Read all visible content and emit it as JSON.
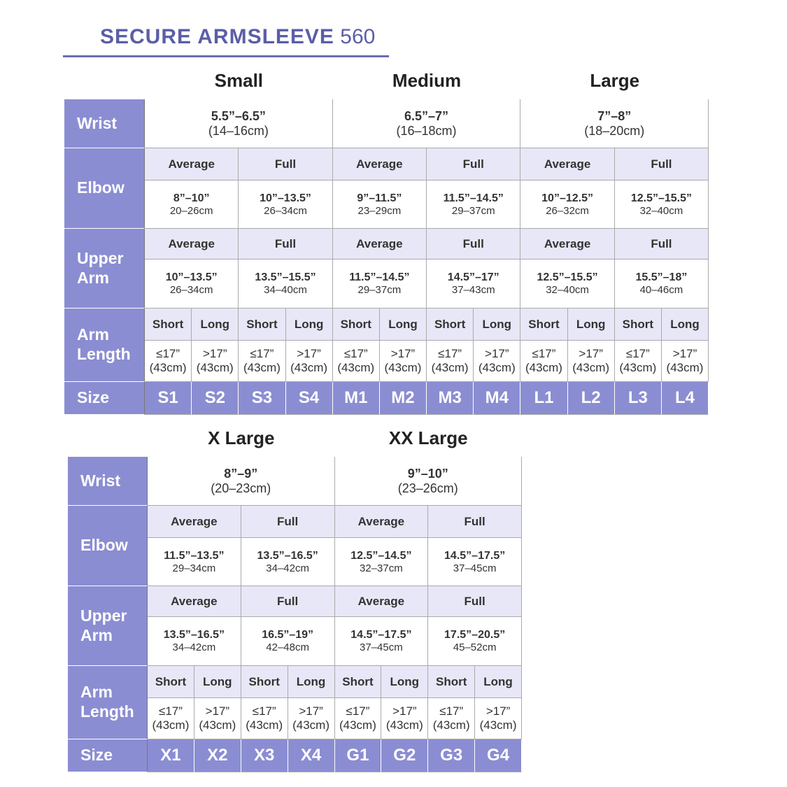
{
  "title": {
    "brand": "SECURE ARMSLEEVE",
    "model": "560"
  },
  "tables": [
    {
      "row_labels": [
        "Wrist",
        "Elbow",
        "Upper Arm",
        "Arm Length",
        "Size"
      ],
      "groups": [
        {
          "name": "Small",
          "wrist": {
            "inches": "5.5”–6.5”",
            "cm": "(14–16cm)"
          },
          "elbow": [
            {
              "fit": "Average",
              "inches": "8”–10”",
              "cm": "20–26cm"
            },
            {
              "fit": "Full",
              "inches": "10”–13.5”",
              "cm": "26–34cm"
            }
          ],
          "upper_arm": [
            {
              "fit": "Average",
              "inches": "10”–13.5”",
              "cm": "26–34cm"
            },
            {
              "fit": "Full",
              "inches": "13.5”–15.5”",
              "cm": "34–40cm"
            }
          ],
          "arm_length": [
            {
              "label": "Short",
              "inches": "≤17”",
              "cm": "(43cm)"
            },
            {
              "label": "Long",
              "inches": ">17”",
              "cm": "(43cm)"
            },
            {
              "label": "Short",
              "inches": "≤17”",
              "cm": "(43cm)"
            },
            {
              "label": "Long",
              "inches": ">17”",
              "cm": "(43cm)"
            }
          ],
          "sizes": [
            "S1",
            "S2",
            "S3",
            "S4"
          ]
        },
        {
          "name": "Medium",
          "wrist": {
            "inches": "6.5”–7”",
            "cm": "(16–18cm)"
          },
          "elbow": [
            {
              "fit": "Average",
              "inches": "9”–11.5”",
              "cm": "23–29cm"
            },
            {
              "fit": "Full",
              "inches": "11.5”–14.5”",
              "cm": "29–37cm"
            }
          ],
          "upper_arm": [
            {
              "fit": "Average",
              "inches": "11.5”–14.5”",
              "cm": "29–37cm"
            },
            {
              "fit": "Full",
              "inches": "14.5”–17”",
              "cm": "37–43cm"
            }
          ],
          "arm_length": [
            {
              "label": "Short",
              "inches": "≤17”",
              "cm": "(43cm)"
            },
            {
              "label": "Long",
              "inches": ">17”",
              "cm": "(43cm)"
            },
            {
              "label": "Short",
              "inches": "≤17”",
              "cm": "(43cm)"
            },
            {
              "label": "Long",
              "inches": ">17”",
              "cm": "(43cm)"
            }
          ],
          "sizes": [
            "M1",
            "M2",
            "M3",
            "M4"
          ]
        },
        {
          "name": "Large",
          "wrist": {
            "inches": "7”–8”",
            "cm": "(18–20cm)"
          },
          "elbow": [
            {
              "fit": "Average",
              "inches": "10”–12.5”",
              "cm": "26–32cm"
            },
            {
              "fit": "Full",
              "inches": "12.5”–15.5”",
              "cm": "32–40cm"
            }
          ],
          "upper_arm": [
            {
              "fit": "Average",
              "inches": "12.5”–15.5”",
              "cm": "32–40cm"
            },
            {
              "fit": "Full",
              "inches": "15.5”–18”",
              "cm": "40–46cm"
            }
          ],
          "arm_length": [
            {
              "label": "Short",
              "inches": "≤17”",
              "cm": "(43cm)"
            },
            {
              "label": "Long",
              "inches": ">17”",
              "cm": "(43cm)"
            },
            {
              "label": "Short",
              "inches": "≤17”",
              "cm": "(43cm)"
            },
            {
              "label": "Long",
              "inches": ">17”",
              "cm": "(43cm)"
            }
          ],
          "sizes": [
            "L1",
            "L2",
            "L3",
            "L4"
          ]
        }
      ]
    },
    {
      "row_labels": [
        "Wrist",
        "Elbow",
        "Upper Arm",
        "Arm Length",
        "Size"
      ],
      "groups": [
        {
          "name": "X Large",
          "wrist": {
            "inches": "8”–9”",
            "cm": "(20–23cm)"
          },
          "elbow": [
            {
              "fit": "Average",
              "inches": "11.5”–13.5”",
              "cm": "29–34cm"
            },
            {
              "fit": "Full",
              "inches": "13.5”–16.5”",
              "cm": "34–42cm"
            }
          ],
          "upper_arm": [
            {
              "fit": "Average",
              "inches": "13.5”–16.5”",
              "cm": "34–42cm"
            },
            {
              "fit": "Full",
              "inches": "16.5”–19”",
              "cm": "42–48cm"
            }
          ],
          "arm_length": [
            {
              "label": "Short",
              "inches": "≤17”",
              "cm": "(43cm)"
            },
            {
              "label": "Long",
              "inches": ">17”",
              "cm": "(43cm)"
            },
            {
              "label": "Short",
              "inches": "≤17”",
              "cm": "(43cm)"
            },
            {
              "label": "Long",
              "inches": ">17”",
              "cm": "(43cm)"
            }
          ],
          "sizes": [
            "X1",
            "X2",
            "X3",
            "X4"
          ]
        },
        {
          "name": "XX Large",
          "wrist": {
            "inches": "9”–10”",
            "cm": "(23–26cm)"
          },
          "elbow": [
            {
              "fit": "Average",
              "inches": "12.5”–14.5”",
              "cm": "32–37cm"
            },
            {
              "fit": "Full",
              "inches": "14.5”–17.5”",
              "cm": "37–45cm"
            }
          ],
          "upper_arm": [
            {
              "fit": "Average",
              "inches": "14.5”–17.5”",
              "cm": "37–45cm"
            },
            {
              "fit": "Full",
              "inches": "17.5”–20.5”",
              "cm": "45–52cm"
            }
          ],
          "arm_length": [
            {
              "label": "Short",
              "inches": "≤17”",
              "cm": "(43cm)"
            },
            {
              "label": "Long",
              "inches": ">17”",
              "cm": "(43cm)"
            },
            {
              "label": "Short",
              "inches": "≤17”",
              "cm": "(43cm)"
            },
            {
              "label": "Long",
              "inches": ">17”",
              "cm": "(43cm)"
            }
          ],
          "sizes": [
            "G1",
            "G2",
            "G3",
            "G4"
          ]
        }
      ]
    }
  ]
}
